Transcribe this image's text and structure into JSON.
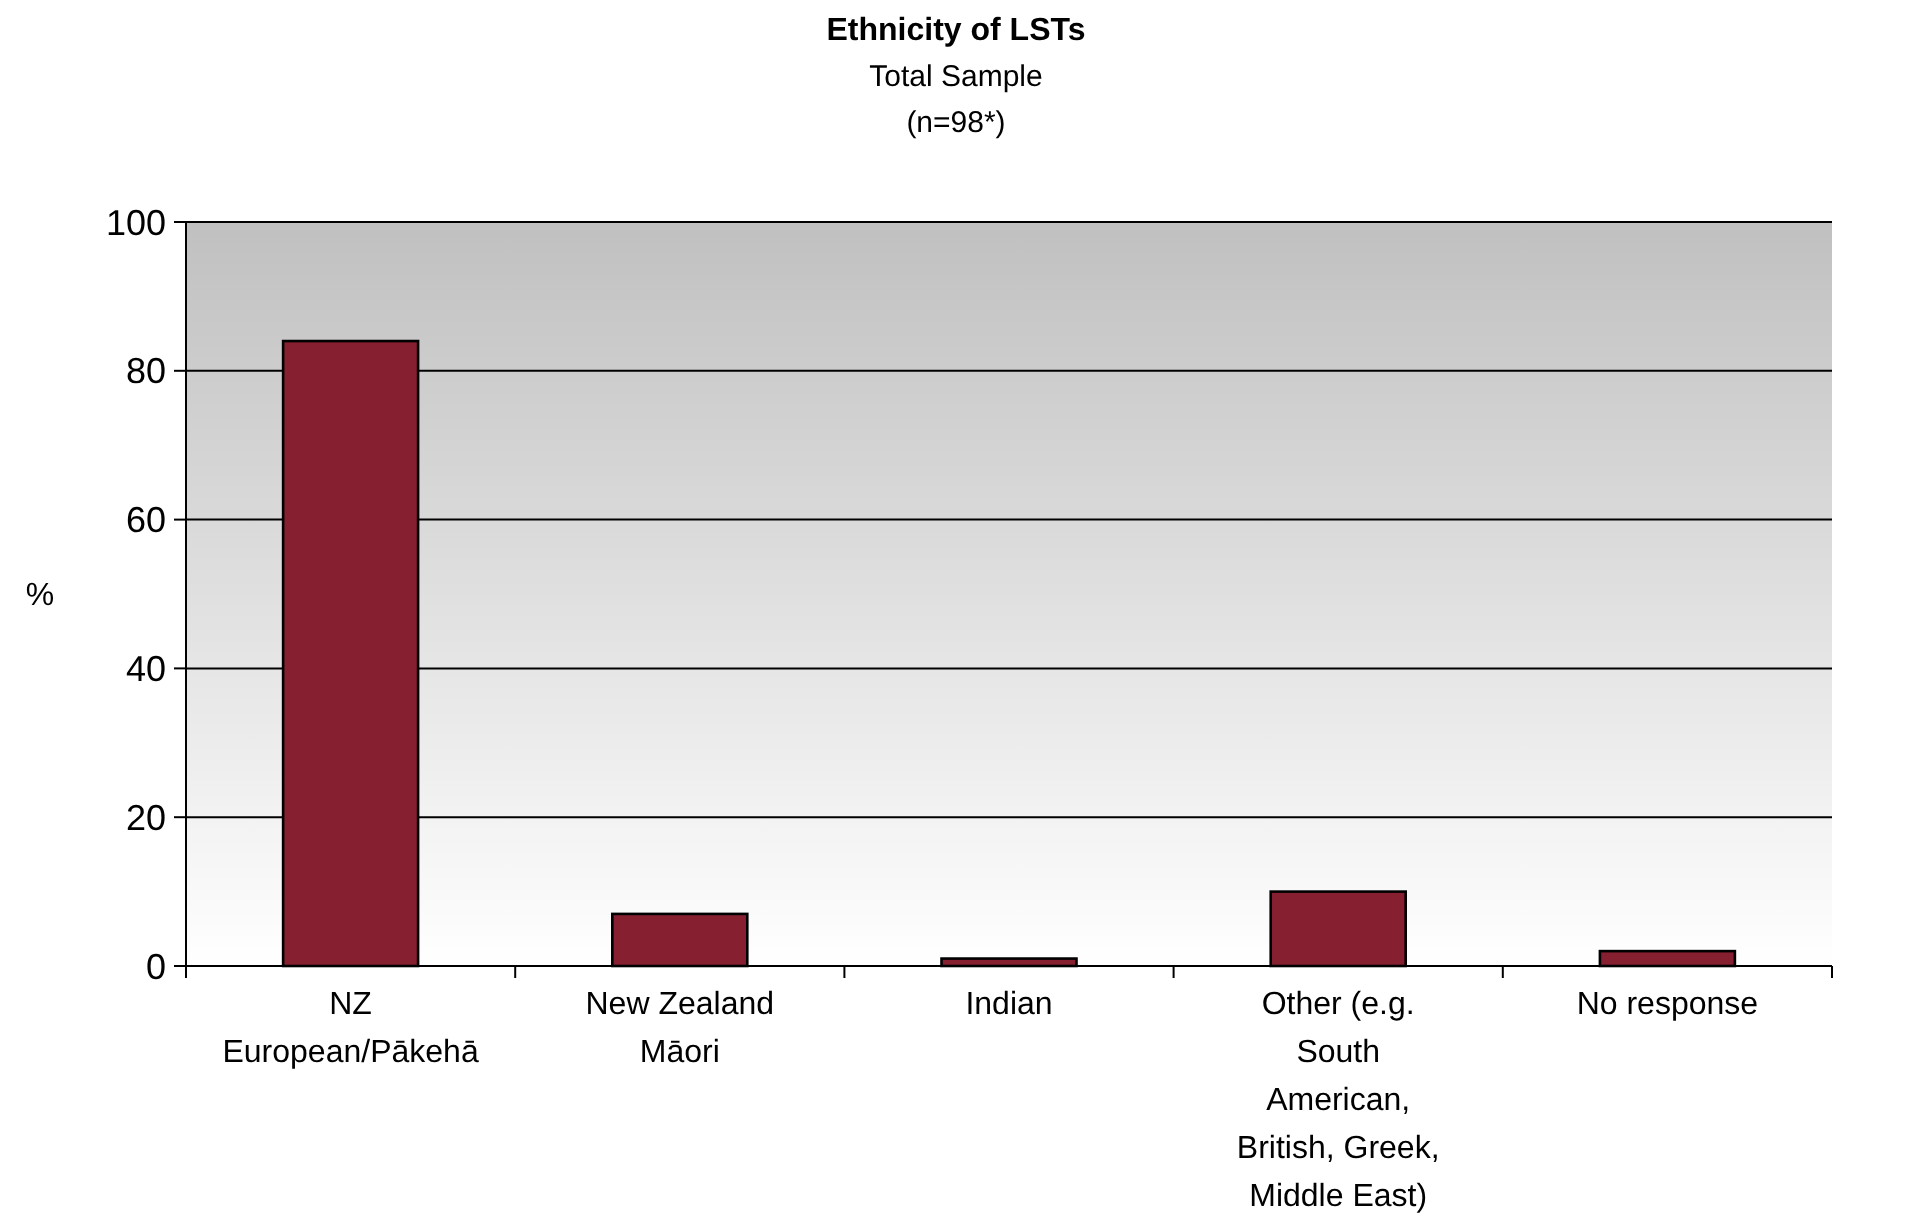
{
  "chart_data": {
    "type": "bar",
    "title": "Ethnicity of LSTs",
    "subtitle": "Total Sample\n(n=98*)",
    "ylabel": "%",
    "categories": [
      "NZ European/Pākehā",
      "New  Zealand Māori",
      "Indian",
      "Other (e.g. South American, British, Greek, Middle East)",
      "No response"
    ],
    "values": [
      84,
      7,
      1,
      10,
      2
    ],
    "color": "#862031",
    "ylim": [
      0,
      100
    ],
    "yticks": [
      0,
      20,
      40,
      60,
      80,
      100
    ],
    "grid": "y"
  }
}
